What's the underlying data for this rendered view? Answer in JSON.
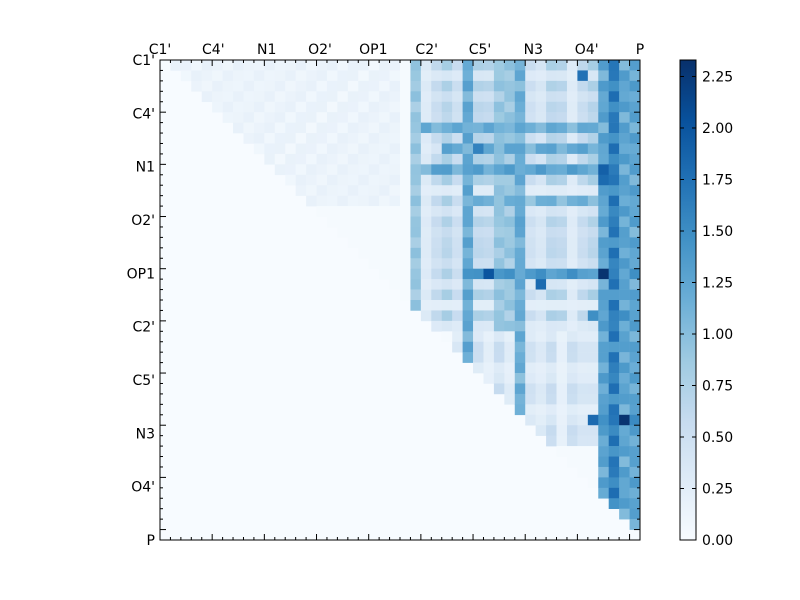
{
  "chart_data": {
    "type": "heatmap",
    "title": "",
    "xlabel": "",
    "ylabel": "",
    "n": 46,
    "x_tick_labels": [
      "C1'",
      "C4'",
      "N1",
      "O2'",
      "OP1",
      "C2'",
      "C5'",
      "N3",
      "O4'",
      "P"
    ],
    "y_tick_labels": [
      "C1'",
      "C4'",
      "N1",
      "O2'",
      "OP1",
      "C2'",
      "C5'",
      "N3",
      "O4'",
      "P"
    ],
    "colorbar": {
      "min": 0.0,
      "max": 2.33,
      "tick_labels": [
        "0.00",
        "0.25",
        "0.50",
        "0.75",
        "1.00",
        "1.25",
        "1.50",
        "1.75",
        "2.00",
        "2.25"
      ],
      "colormap": "Blues",
      "colors": [
        "#f7fbff",
        "#deebf7",
        "#c6dbef",
        "#9ecae1",
        "#6baed6",
        "#4292c6",
        "#2171b5",
        "#08519c",
        "#08306b"
      ]
    },
    "upper_triangle_only": true,
    "values": {
      "bands": [
        {
          "rows": [
            0,
            46
          ],
          "cols": [
            24,
            25
          ],
          "value": 0.85
        },
        {
          "rows": [
            0,
            36
          ],
          "cols": [
            29,
            30
          ],
          "value": 1.15
        },
        {
          "rows": [
            0,
            36
          ],
          "cols": [
            34,
            35
          ],
          "value": 1.1
        },
        {
          "rows": [
            0,
            26
          ],
          "cols": [
            32,
            34
          ],
          "value": 0.85
        },
        {
          "rows": [
            0,
            46
          ],
          "cols": [
            42,
            46
          ],
          "value": 1.2
        },
        {
          "rows": [
            0,
            46
          ],
          "cols": [
            43,
            44
          ],
          "value": 1.55
        },
        {
          "rows": [
            20,
            21
          ],
          "cols": [
            29,
            46
          ],
          "value": 1.3
        },
        {
          "rows": [
            6,
            7
          ],
          "cols": [
            25,
            46
          ],
          "value": 1.1
        },
        {
          "rows": [
            8,
            9
          ],
          "cols": [
            27,
            46
          ],
          "value": 1.15
        },
        {
          "rows": [
            10,
            11
          ],
          "cols": [
            25,
            46
          ],
          "value": 1.2
        },
        {
          "rows": [
            13,
            14
          ],
          "cols": [
            29,
            46
          ],
          "value": 1.05
        },
        {
          "rows": [
            24,
            25
          ],
          "cols": [
            41,
            46
          ],
          "value": 1.3
        },
        {
          "rows": [
            34,
            35
          ],
          "cols": [
            41,
            46
          ],
          "value": 1.6
        },
        {
          "rows": [
            40,
            41
          ],
          "cols": [
            43,
            46
          ],
          "value": 0.8
        }
      ],
      "cells": [
        {
          "row": 20,
          "col": 42,
          "value": 2.3
        },
        {
          "row": 20,
          "col": 31,
          "value": 2.0
        },
        {
          "row": 34,
          "col": 44,
          "value": 2.3
        },
        {
          "row": 1,
          "col": 40,
          "value": 1.75
        },
        {
          "row": 10,
          "col": 42,
          "value": 1.9
        },
        {
          "row": 11,
          "col": 42,
          "value": 1.8
        },
        {
          "row": 8,
          "col": 30,
          "value": 1.6
        },
        {
          "row": 21,
          "col": 36,
          "value": 1.8
        },
        {
          "row": 15,
          "col": 34,
          "value": 1.3
        }
      ]
    }
  }
}
